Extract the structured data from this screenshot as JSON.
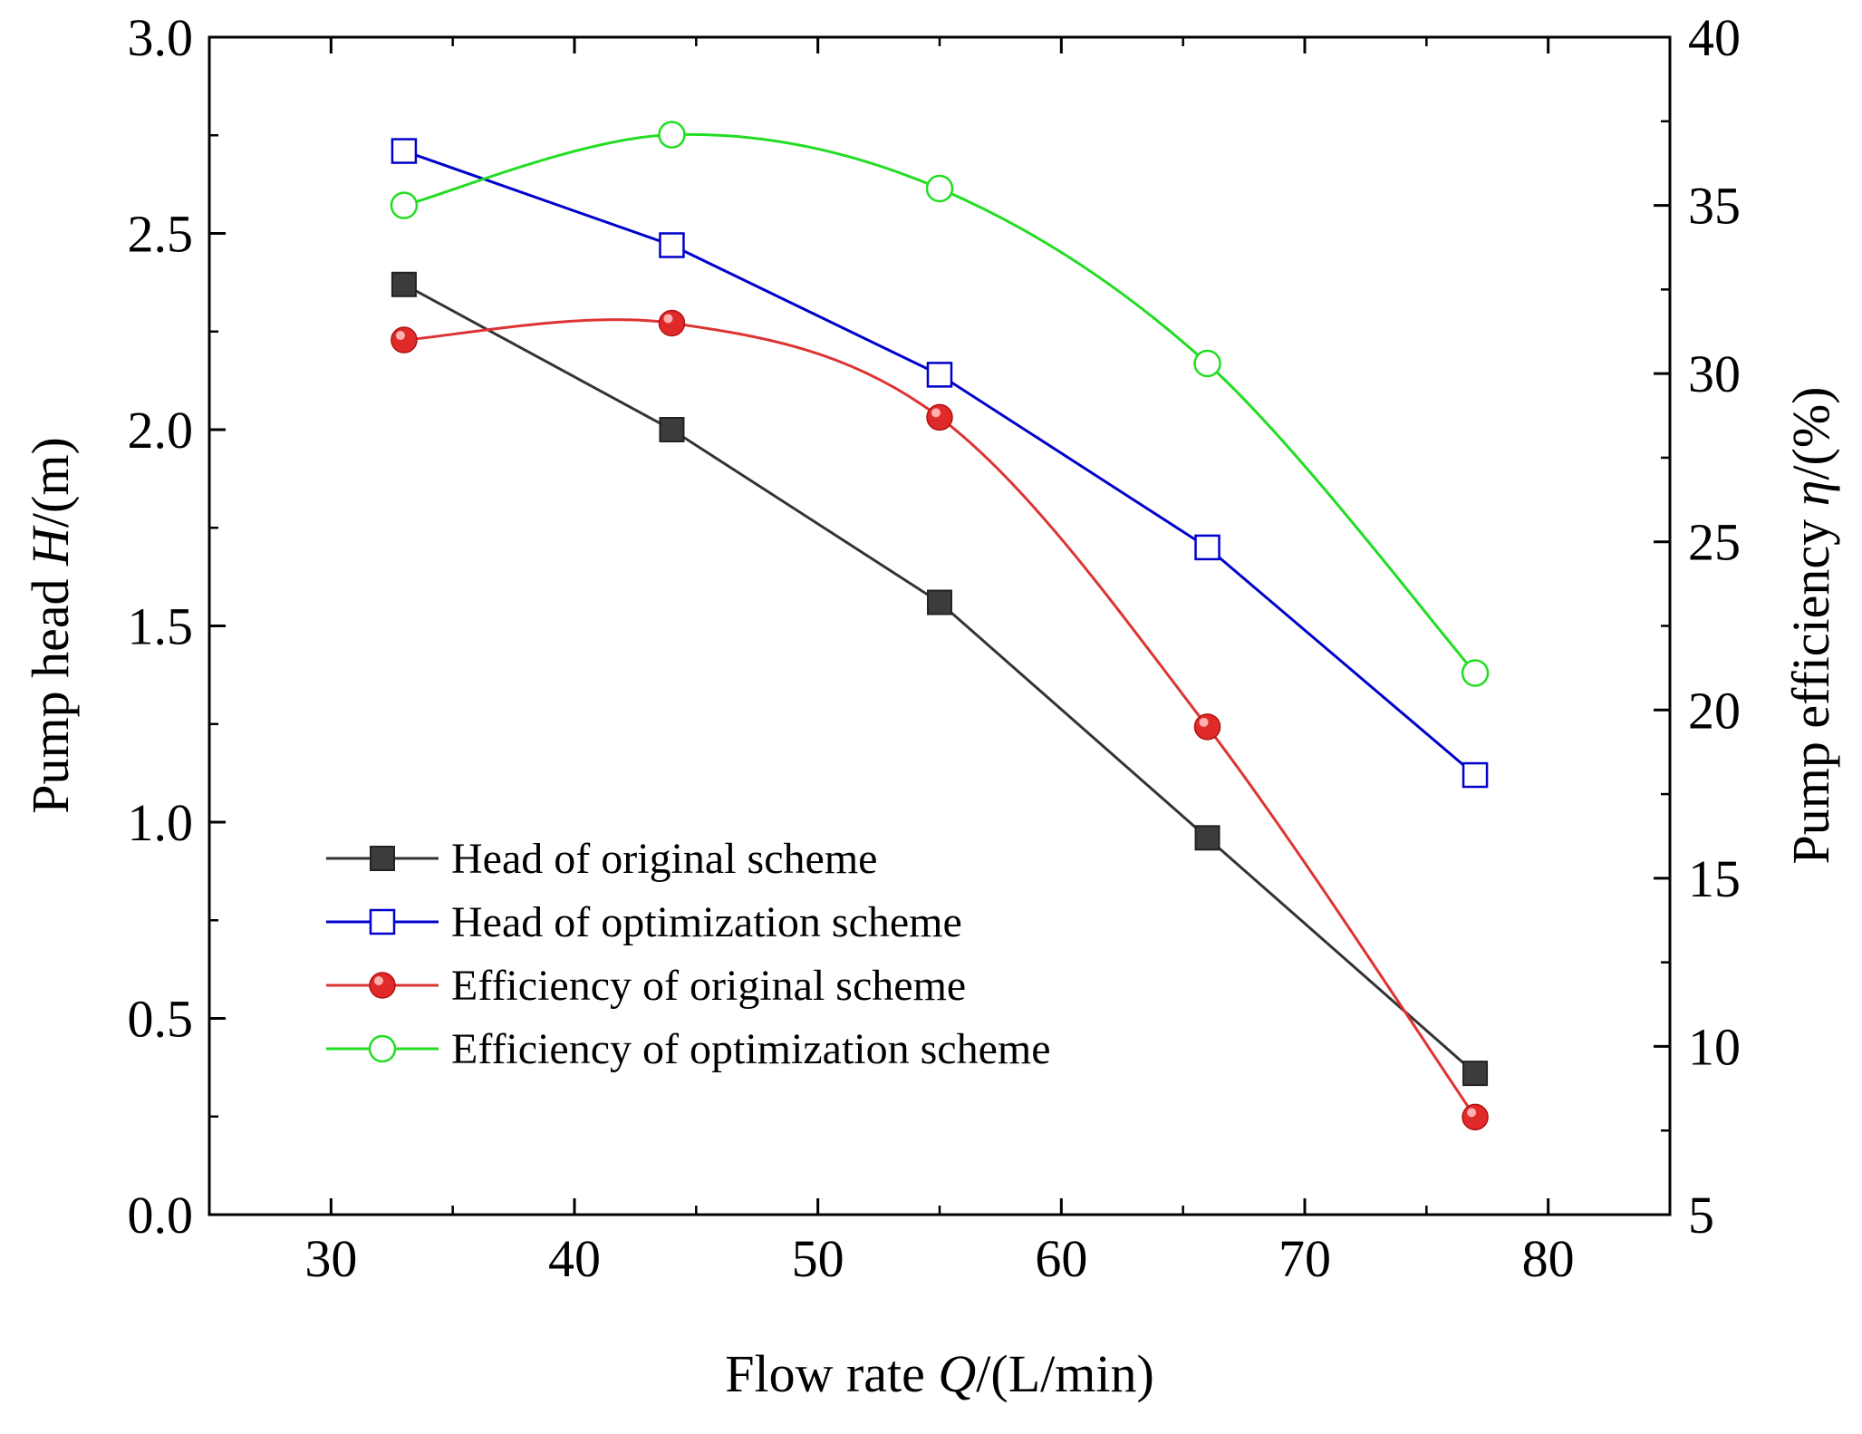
{
  "chart_data": {
    "type": "line",
    "title": "",
    "xlabel": {
      "prefix": "Flow rate ",
      "symbol": "Q",
      "suffix": "/(L/min)"
    },
    "ylabel_left": {
      "prefix": "Pump head ",
      "symbol": "H",
      "suffix": "/(m)"
    },
    "ylabel_right": {
      "prefix": "Pump efficiency ",
      "symbol": "η",
      "suffix": "/(%)"
    },
    "xlim": [
      25,
      85
    ],
    "ylim_left": [
      0,
      3
    ],
    "ylim_right": [
      5,
      40
    ],
    "x_ticks": [
      "30",
      "40",
      "50",
      "60",
      "70",
      "80"
    ],
    "y_left_ticks": [
      "0.0",
      "0.5",
      "1.0",
      "1.5",
      "2.0",
      "2.5",
      "3.0"
    ],
    "y_right_ticks": [
      "5",
      "10",
      "15",
      "20",
      "25",
      "30",
      "35",
      "40"
    ],
    "grid": false,
    "legend_position": "lower-left",
    "series": [
      {
        "name": "Head of original scheme",
        "axis": "left",
        "color": "#333333",
        "marker": "filled-square",
        "smooth": false,
        "x": [
          33,
          44,
          55,
          66,
          77
        ],
        "y": [
          2.37,
          2.0,
          1.56,
          0.96,
          0.36
        ]
      },
      {
        "name": "Head of optimization scheme",
        "axis": "left",
        "color": "#0000cc",
        "marker": "open-square",
        "smooth": false,
        "x": [
          33,
          44,
          55,
          66,
          77
        ],
        "y": [
          2.71,
          2.47,
          2.14,
          1.7,
          1.12
        ]
      },
      {
        "name": "Efficiency of original scheme",
        "axis": "right",
        "color": "#dd3333",
        "marker": "filled-circle",
        "smooth": true,
        "x": [
          33,
          44,
          55,
          66,
          77
        ],
        "y": [
          31.0,
          31.5,
          28.7,
          19.5,
          7.9
        ]
      },
      {
        "name": "Efficiency of optimization scheme",
        "axis": "right",
        "color": "#22dd22",
        "marker": "open-circle",
        "smooth": true,
        "x": [
          33,
          44,
          55,
          66,
          77
        ],
        "y": [
          35.0,
          37.1,
          35.5,
          30.3,
          21.1
        ]
      }
    ]
  }
}
